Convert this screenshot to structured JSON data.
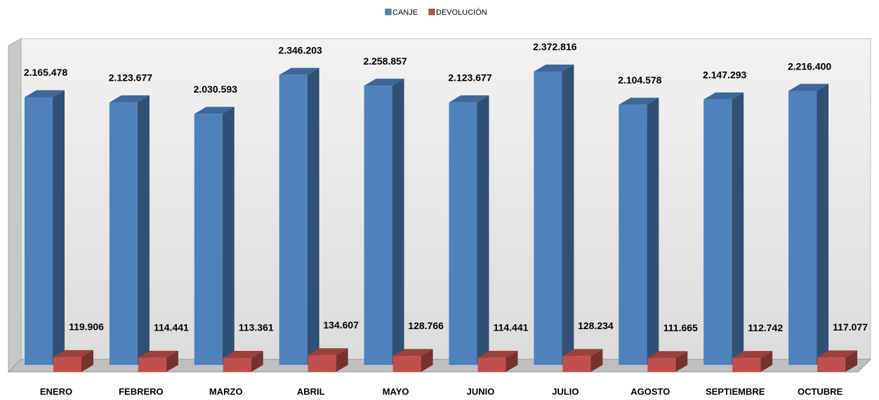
{
  "chart_data": {
    "type": "bar3d",
    "categories": [
      "ENERO",
      "FEBRERO",
      "MARZO",
      "ABRIL",
      "MAYO",
      "JUNIO",
      "JULIO",
      "AGOSTO",
      "SEPTIEMBRE",
      "OCTUBRE"
    ],
    "series": [
      {
        "name": "CANJE",
        "color": "#4f81bd",
        "values": [
          2165478,
          2123677,
          2030593,
          2346203,
          2258857,
          2123677,
          2372816,
          2104578,
          2147293,
          2216400
        ],
        "value_labels": [
          "2.165.478",
          "2.123.677",
          "2.030.593",
          "2.346.203",
          "2.258.857",
          "2.123.677",
          "2.372.816",
          "2.104.578",
          "2.147.293",
          "2.216.400"
        ]
      },
      {
        "name": "DEVOLUCIÓN",
        "color": "#c0504d",
        "values": [
          119906,
          114441,
          113361,
          134607,
          128766,
          114441,
          128234,
          111665,
          112742,
          117077
        ],
        "value_labels": [
          "119.906",
          "114.441",
          "113.361",
          "134.607",
          "128.766",
          "114.441",
          "128.234",
          "111.665",
          "112.742",
          "117.077"
        ]
      }
    ],
    "legend": "top"
  }
}
